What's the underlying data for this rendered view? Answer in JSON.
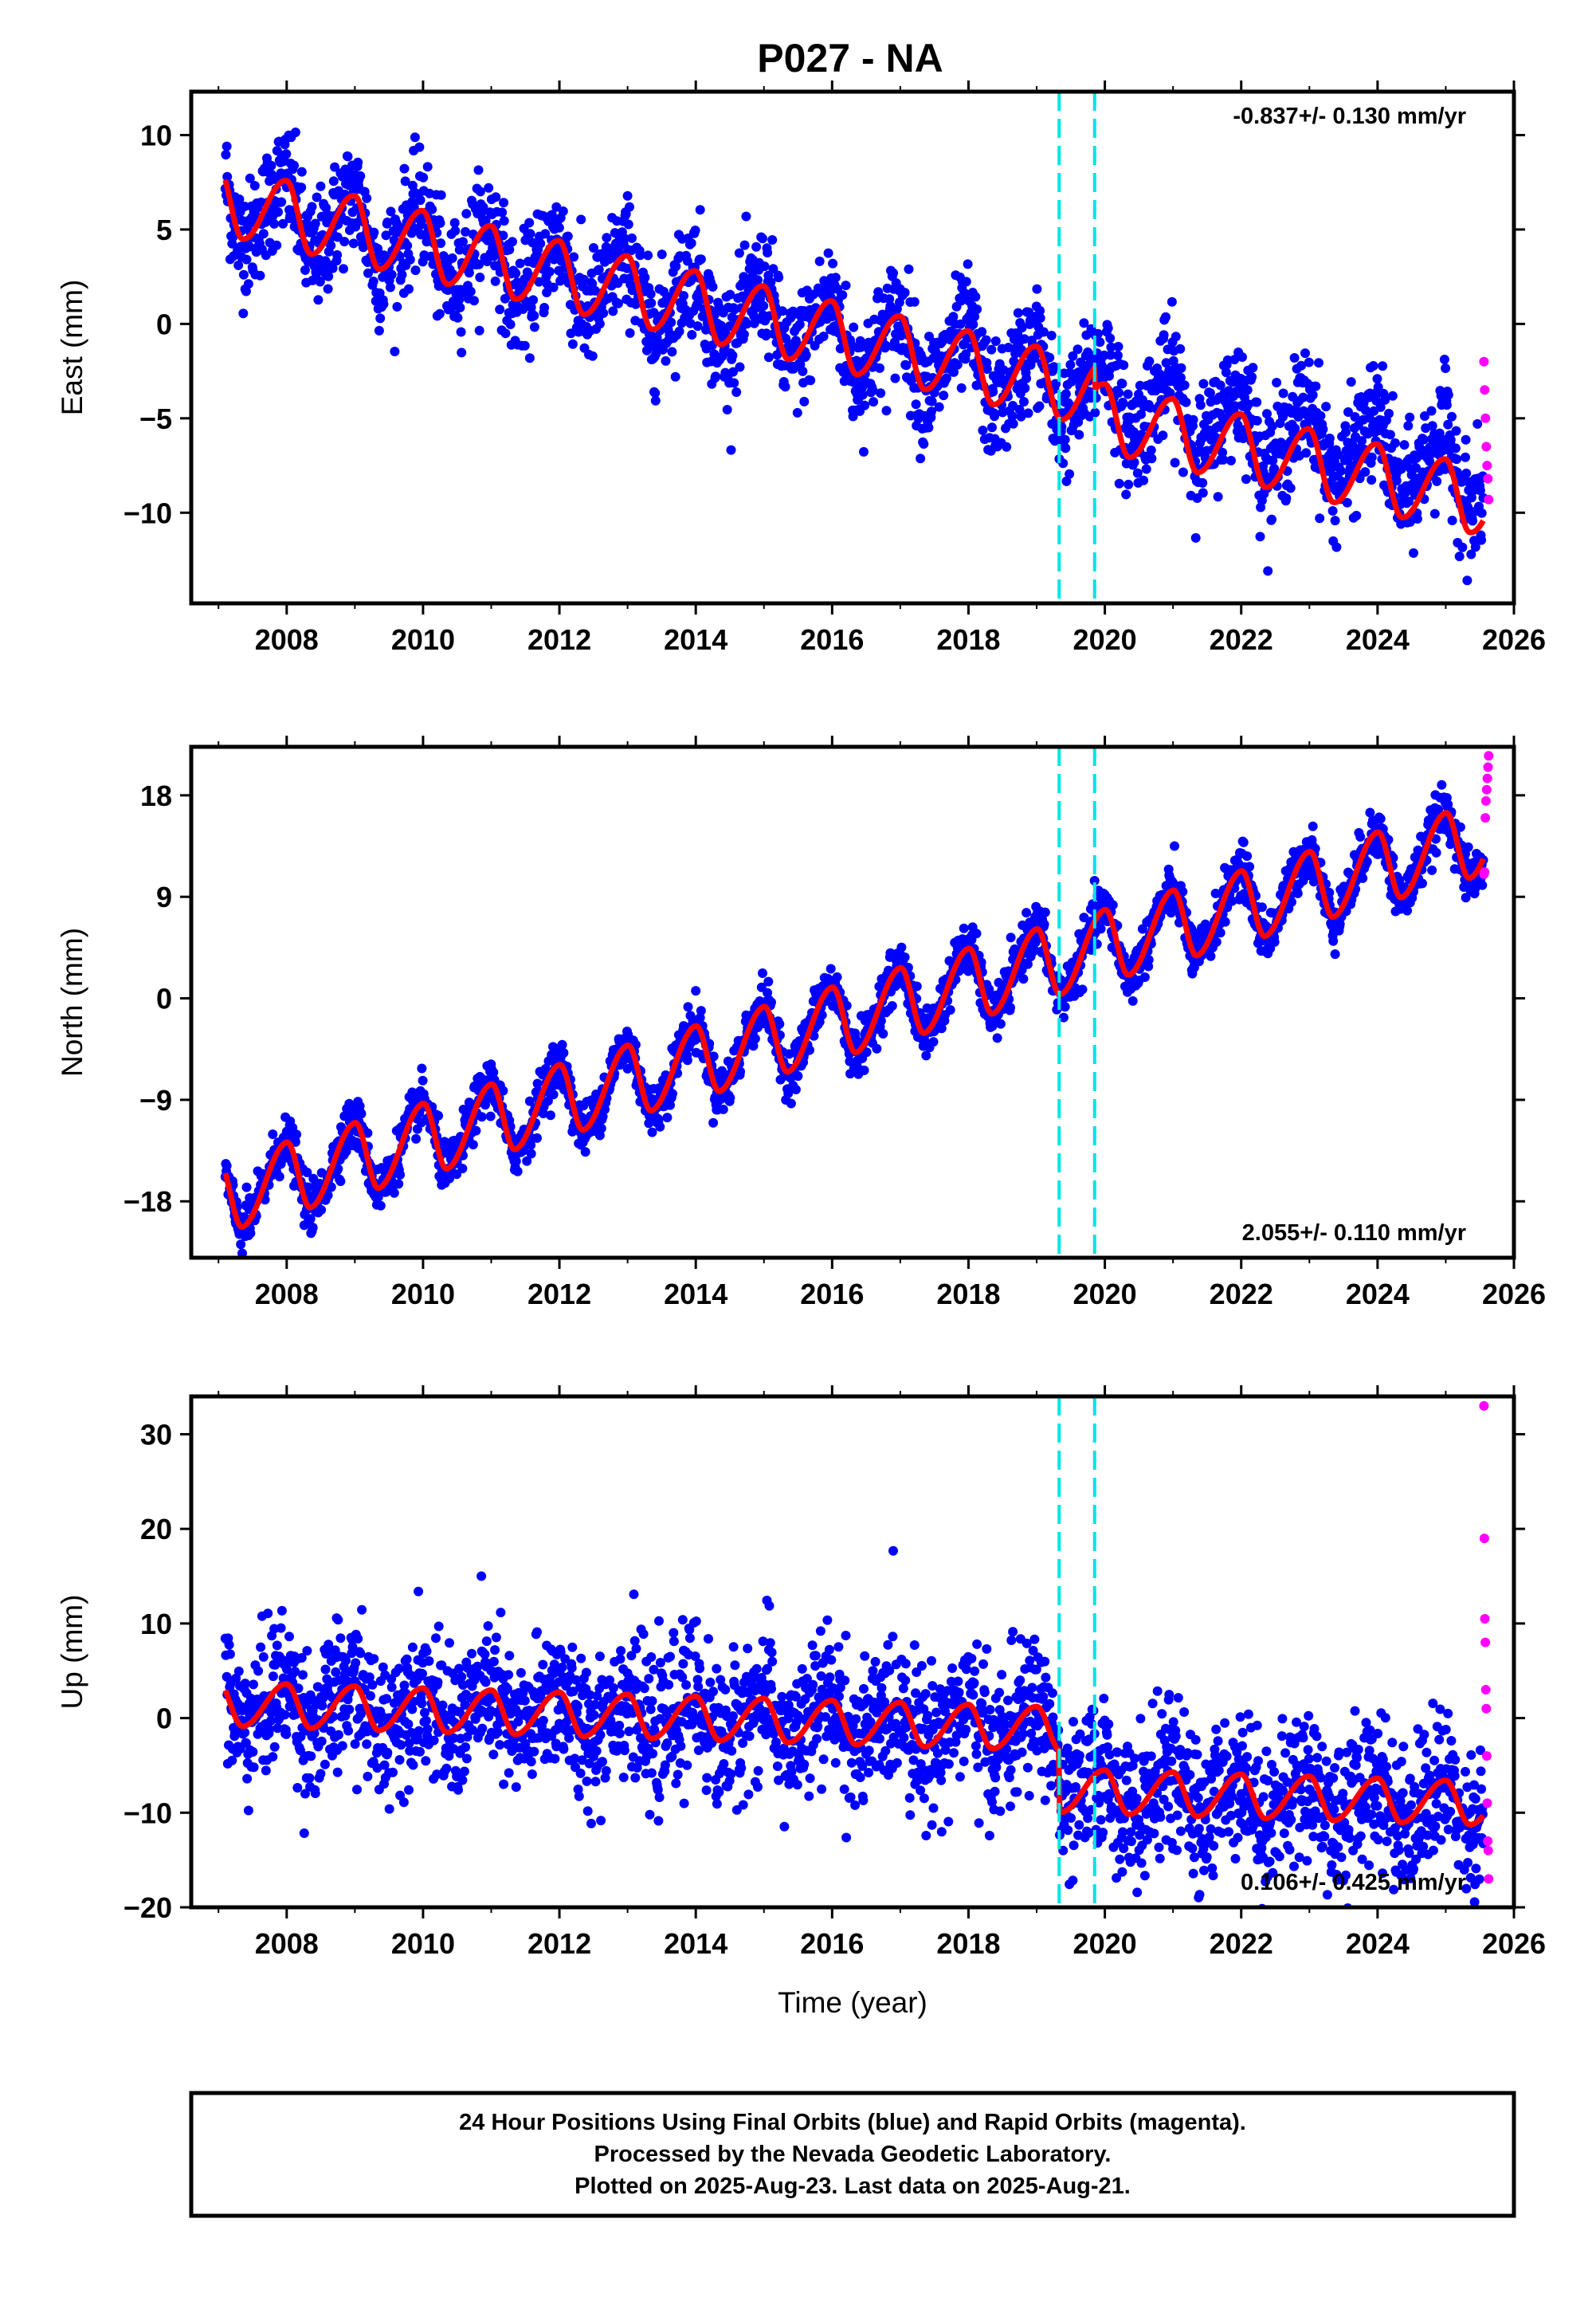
{
  "figure_title": "P027 - NA",
  "colors": {
    "final_orbits": "#0000ff",
    "rapid_orbits": "#ff00ff",
    "model": "#ff0000",
    "equipment_change": "#00e5e5",
    "frame": "#000000"
  },
  "footer": {
    "line1": "24 Hour Positions Using Final Orbits (blue) and Rapid Orbits (magenta).",
    "line2": "Processed by the Nevada Geodetic Laboratory.",
    "line3": "Plotted on 2025-Aug-23. Last data on 2025-Aug-21."
  },
  "chart_data": [
    {
      "type": "scatter",
      "component": "east",
      "ylabel": "East (mm)",
      "xlabel": "",
      "xlim": [
        2006.6,
        2026.0
      ],
      "ylim": [
        -14.8,
        12.3
      ],
      "xticks": [
        2008,
        2010,
        2012,
        2014,
        2016,
        2018,
        2020,
        2022,
        2024,
        2026
      ],
      "yticks": [
        -10,
        -5,
        0,
        5,
        10
      ],
      "ytick_labels": [
        "−10",
        "−5",
        "0",
        "5",
        "10"
      ],
      "rate_label": "-0.837+/- 0.130 mm/yr",
      "rate_position": "top-right",
      "series": [
        {
          "name": "Final Orbits (blue)",
          "x_range": [
            2007.1,
            2025.55
          ],
          "trend": {
            "start": 6.5,
            "end": -8.2
          },
          "seasonal_amplitude": 1.8,
          "noise_sd": 1.5,
          "offsets": []
        },
        {
          "name": "Rapid Orbits (magenta)",
          "x_range": [
            2025.56,
            2025.63
          ],
          "values": [
            -2,
            -3.5,
            -5,
            -6.5,
            -7.5,
            -8.2,
            -9.3
          ]
        }
      ],
      "model_line": {
        "trend": {
          "start": 6.5,
          "end": -8.2
        },
        "seasonal_amplitude": 1.8,
        "offsets": [
          {
            "x": 2019.85,
            "dy": -1.2
          }
        ]
      },
      "vertical_lines": [
        2019.33,
        2019.85
      ]
    },
    {
      "type": "scatter",
      "component": "north",
      "ylabel": "North (mm)",
      "xlabel": "",
      "xlim": [
        2006.6,
        2026.0
      ],
      "ylim": [
        -23.0,
        22.3
      ],
      "xticks": [
        2008,
        2010,
        2012,
        2014,
        2016,
        2018,
        2020,
        2022,
        2024,
        2026
      ],
      "yticks": [
        -18,
        -9,
        0,
        9,
        18
      ],
      "ytick_labels": [
        "−18",
        "−9",
        "0",
        "9",
        "18"
      ],
      "rate_label": "2.055+/- 0.110 mm/yr",
      "rate_position": "bottom-right",
      "series": [
        {
          "name": "Final Orbits (blue)",
          "x_range": [
            2007.1,
            2025.55
          ],
          "trend": {
            "start": -17.5,
            "end": 14.2
          },
          "seasonal_amplitude": 3.2,
          "noise_sd": 1.1,
          "offsets": []
        },
        {
          "name": "Rapid Orbits (magenta)",
          "x_range": [
            2025.56,
            2025.63
          ],
          "values": [
            11,
            11.2,
            16,
            17.5,
            18.5,
            19.5,
            20.5,
            21.5
          ]
        }
      ],
      "model_line": {
        "trend": {
          "start": -17.5,
          "end": 14.2
        },
        "seasonal_amplitude": 3.2,
        "offsets": []
      },
      "vertical_lines": [
        2019.33,
        2019.85
      ]
    },
    {
      "type": "scatter",
      "component": "up",
      "ylabel": "Up (mm)",
      "xlabel": "Time (year)",
      "xlim": [
        2006.6,
        2026.0
      ],
      "ylim": [
        -20.0,
        34.0
      ],
      "xticks": [
        2008,
        2010,
        2012,
        2014,
        2016,
        2018,
        2020,
        2022,
        2024,
        2026
      ],
      "yticks": [
        -20,
        -10,
        0,
        10,
        20,
        30
      ],
      "ytick_labels": [
        "−20",
        "−10",
        "0",
        "10",
        "20",
        "30"
      ],
      "rate_label": "0.106+/- 0.425 mm/yr",
      "rate_position": "bottom-right",
      "series": [
        {
          "name": "Final Orbits (blue)",
          "x_range": [
            2007.1,
            2025.55
          ],
          "trend": {
            "start": 1.5,
            "end": -2.5
          },
          "seasonal_amplitude": 2.3,
          "noise_sd": 3.8,
          "offsets": [
            {
              "x": 2019.33,
              "dy": -6.5
            }
          ]
        },
        {
          "name": "Rapid Orbits (magenta)",
          "x_range": [
            2025.56,
            2025.63
          ],
          "values": [
            33,
            19,
            10.5,
            8,
            3,
            1,
            -4,
            -9,
            -13,
            -14,
            -17
          ]
        }
      ],
      "model_line": {
        "trend": {
          "start": 1.5,
          "end": -2.5
        },
        "seasonal_amplitude": 2.3,
        "offsets": [
          {
            "x": 2019.33,
            "dy": -6.5
          }
        ]
      },
      "vertical_lines": [
        2019.33,
        2019.85
      ]
    }
  ]
}
